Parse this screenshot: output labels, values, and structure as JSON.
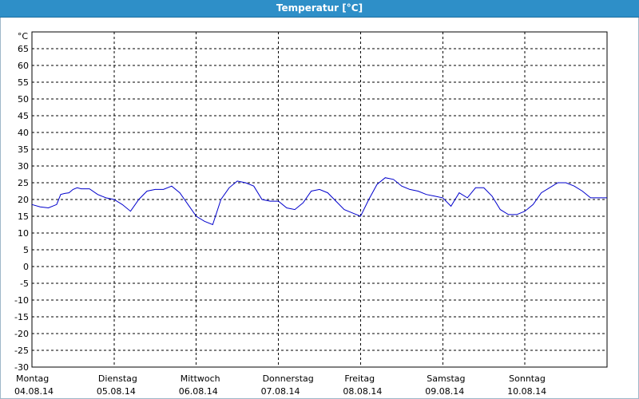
{
  "window": {
    "title": "Temperatur [°C]"
  },
  "chart_data": {
    "type": "line",
    "title": "Temperatur [°C]",
    "ylabel": "°C",
    "ylim": [
      -30,
      70
    ],
    "yticks": [
      65,
      60,
      55,
      50,
      45,
      40,
      35,
      30,
      25,
      20,
      15,
      10,
      5,
      0,
      -5,
      -10,
      -15,
      -20,
      -25,
      -30
    ],
    "xlim": [
      0,
      7
    ],
    "grid": true,
    "day_labels": [
      {
        "day": "Montag",
        "date": "04.08.14"
      },
      {
        "day": "Dienstag",
        "date": "05.08.14"
      },
      {
        "day": "Mittwoch",
        "date": "06.08.14"
      },
      {
        "day": "Donnerstag",
        "date": "07.08.14"
      },
      {
        "day": "Freitag",
        "date": "08.08.14"
      },
      {
        "day": "Samstag",
        "date": "09.08.14"
      },
      {
        "day": "Sonntag",
        "date": "10.08.14"
      }
    ],
    "series": [
      {
        "color": "#0000cc",
        "x": [
          0.0,
          0.1,
          0.2,
          0.3,
          0.35,
          0.4,
          0.45,
          0.5,
          0.55,
          0.6,
          0.7,
          0.8,
          0.9,
          1.0,
          1.1,
          1.2,
          1.3,
          1.4,
          1.5,
          1.6,
          1.7,
          1.8,
          1.9,
          2.0,
          2.1,
          2.2,
          2.3,
          2.4,
          2.5,
          2.6,
          2.7,
          2.8,
          2.9,
          3.0,
          3.1,
          3.2,
          3.3,
          3.4,
          3.5,
          3.6,
          3.7,
          3.8,
          3.9,
          4.0,
          4.1,
          4.2,
          4.3,
          4.4,
          4.5,
          4.6,
          4.7,
          4.8,
          4.9,
          5.0,
          5.1,
          5.2,
          5.3,
          5.4,
          5.5,
          5.6,
          5.7,
          5.8,
          5.9,
          6.0,
          6.1,
          6.2,
          6.3,
          6.4,
          6.5,
          6.6,
          6.7,
          6.8,
          6.9,
          7.0
        ],
        "y": [
          18.5,
          17.8,
          17.5,
          18.5,
          21.5,
          21.8,
          22.0,
          23.0,
          23.5,
          23.2,
          23.2,
          21.5,
          20.5,
          20.0,
          18.5,
          16.5,
          20.0,
          22.5,
          23.0,
          23.0,
          24.0,
          22.0,
          18.5,
          15.0,
          13.5,
          12.5,
          20.0,
          23.5,
          25.5,
          25.0,
          24.0,
          20.0,
          19.5,
          19.5,
          17.5,
          17.0,
          19.0,
          22.5,
          23.0,
          22.0,
          19.5,
          17.0,
          16.0,
          15.0,
          20.0,
          24.5,
          26.5,
          26.0,
          24.0,
          23.0,
          22.5,
          21.5,
          21.0,
          20.5,
          18.0,
          22.0,
          20.5,
          23.5,
          23.5,
          21.0,
          17.0,
          15.5,
          15.5,
          16.5,
          18.5,
          22.0,
          23.5,
          25.0,
          25.0,
          24.0,
          22.5,
          20.5,
          20.5,
          20.5
        ]
      }
    ]
  }
}
